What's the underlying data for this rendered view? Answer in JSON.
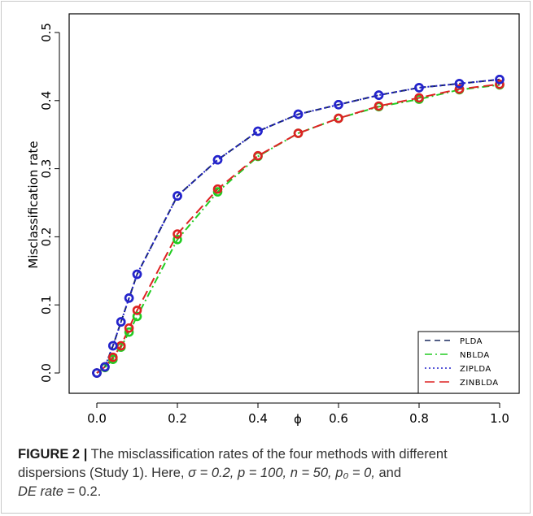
{
  "chart_data": {
    "type": "line",
    "xlabel": "ϕ",
    "ylabel": "Misclassification rate",
    "xlim": [
      0,
      1
    ],
    "ylim": [
      0,
      0.5
    ],
    "x_ticks": [
      0.0,
      0.2,
      0.4,
      0.6,
      0.8,
      1.0
    ],
    "x_tick_labels": [
      "0.0",
      "0.2",
      "0.4",
      "0.6",
      "0.8",
      "1.0"
    ],
    "y_ticks": [
      0.0,
      0.1,
      0.2,
      0.3,
      0.4,
      0.5
    ],
    "y_tick_labels": [
      "0.0",
      "0.1",
      "0.2",
      "0.3",
      "0.4",
      "0.5"
    ],
    "grid": false,
    "legend_position": "bottom-right",
    "x": [
      0.0,
      0.02,
      0.04,
      0.06,
      0.08,
      0.1,
      0.2,
      0.3,
      0.4,
      0.5,
      0.6,
      0.7,
      0.8,
      0.9,
      1.0
    ],
    "series": [
      {
        "name": "PLDA",
        "color": "#1a2a5e",
        "dash": "dashed",
        "marker_color": "#2424cc",
        "values": [
          0.0,
          0.009,
          0.04,
          0.075,
          0.11,
          0.145,
          0.26,
          0.313,
          0.355,
          0.38,
          0.394,
          0.408,
          0.419,
          0.425,
          0.431
        ]
      },
      {
        "name": "NBLDA",
        "color": "#22cc22",
        "dash": "dotdash",
        "marker_color": "#22cc22",
        "values": [
          0.0,
          0.008,
          0.02,
          0.038,
          0.06,
          0.083,
          0.196,
          0.266,
          0.318,
          0.352,
          0.374,
          0.391,
          0.402,
          0.416,
          0.423
        ]
      },
      {
        "name": "ZIPLDA",
        "color": "#2222cc",
        "dash": "dotted",
        "marker_color": "#2424cc",
        "values": [
          0.0,
          0.009,
          0.04,
          0.075,
          0.11,
          0.145,
          0.26,
          0.313,
          0.355,
          0.38,
          0.394,
          0.408,
          0.419,
          0.425,
          0.431
        ]
      },
      {
        "name": "ZINBLDA",
        "color": "#dd2222",
        "dash": "longdash",
        "marker_color": "#dd2222",
        "values": [
          0.0,
          0.009,
          0.023,
          0.04,
          0.066,
          0.092,
          0.204,
          0.27,
          0.319,
          0.352,
          0.374,
          0.392,
          0.404,
          0.417,
          0.424
        ]
      }
    ]
  },
  "caption": {
    "figure_label": "FIGURE 2",
    "separator": "|",
    "line1": "The misclassification rates of the four methods with different",
    "line2_pre": "dispersions (Study 1). Here,",
    "sigma_eq": "σ = 0.2,",
    "p_eq": "p = 100,",
    "n_eq": "n = 50,",
    "p0_eq": "p₀ = 0,",
    "and": "and",
    "de_rate": "DE rate",
    "de_value": "= 0.2."
  }
}
